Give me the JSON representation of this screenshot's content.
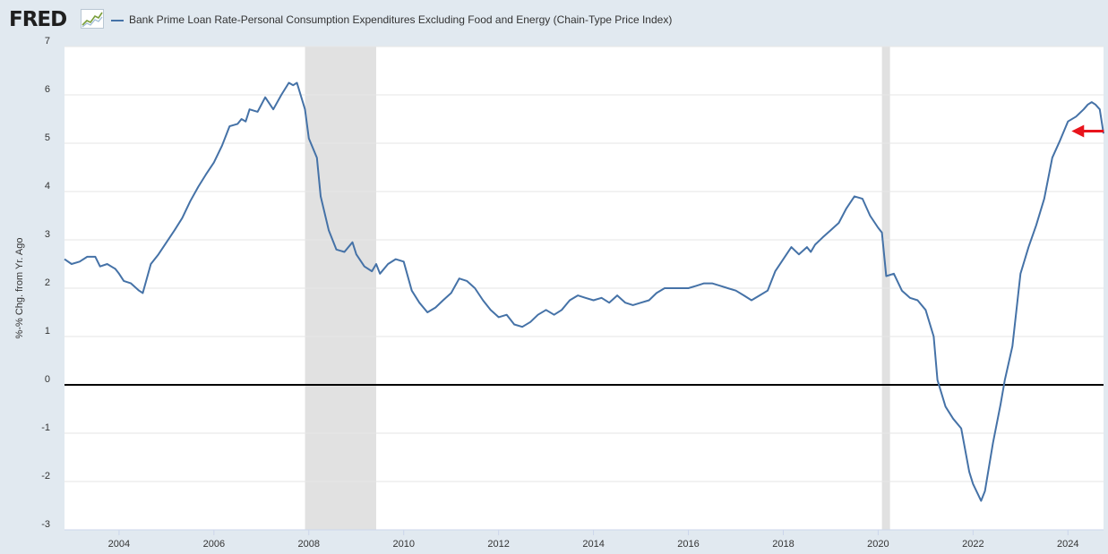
{
  "header": {
    "logo_text": "FRED",
    "logo_graph_icon": "trend-graph-icon"
  },
  "colors": {
    "series": "#4572a7",
    "recession": "#e1e1e1",
    "background": "#e1e9f0",
    "plot_background": "#ffffff",
    "zero_line": "#000000",
    "arrow": "#e8141c"
  },
  "chart_data": {
    "type": "line",
    "title": "",
    "xlabel": "",
    "ylabel": "%-% Chg. from Yr. Ago",
    "xlim": [
      2002.85,
      2024.75
    ],
    "ylim": [
      -3,
      7
    ],
    "y_ticks": [
      "7",
      "6",
      "5",
      "4",
      "3",
      "2",
      "1",
      "0",
      "-1",
      "-2",
      "-3"
    ],
    "x_ticks": [
      "2004",
      "2006",
      "2008",
      "2010",
      "2012",
      "2014",
      "2016",
      "2018",
      "2020",
      "2022",
      "2024"
    ],
    "grid": "horizontal",
    "legend_position": "top",
    "recessions": [
      [
        2007.92,
        2009.42
      ],
      [
        2020.08,
        2020.25
      ]
    ],
    "zero_line": 0,
    "annotation": {
      "type": "arrow",
      "points_to": [
        2024.0,
        5.25
      ]
    },
    "series": [
      {
        "name": "Bank Prime Loan Rate-Personal Consumption Expenditures Excluding Food and Energy (Chain-Type Price Index)",
        "points": [
          [
            2002.85,
            2.6
          ],
          [
            2003.0,
            2.5
          ],
          [
            2003.17,
            2.55
          ],
          [
            2003.33,
            2.65
          ],
          [
            2003.5,
            2.65
          ],
          [
            2003.6,
            2.45
          ],
          [
            2003.75,
            2.5
          ],
          [
            2003.92,
            2.4
          ],
          [
            2004.0,
            2.3
          ],
          [
            2004.1,
            2.15
          ],
          [
            2004.25,
            2.1
          ],
          [
            2004.42,
            1.95
          ],
          [
            2004.5,
            1.9
          ],
          [
            2004.67,
            2.5
          ],
          [
            2004.83,
            2.7
          ],
          [
            2005.0,
            2.95
          ],
          [
            2005.17,
            3.2
          ],
          [
            2005.33,
            3.45
          ],
          [
            2005.5,
            3.8
          ],
          [
            2005.67,
            4.1
          ],
          [
            2005.83,
            4.35
          ],
          [
            2006.0,
            4.6
          ],
          [
            2006.17,
            4.95
          ],
          [
            2006.33,
            5.35
          ],
          [
            2006.5,
            5.4
          ],
          [
            2006.58,
            5.5
          ],
          [
            2006.67,
            5.45
          ],
          [
            2006.75,
            5.7
          ],
          [
            2006.92,
            5.65
          ],
          [
            2007.08,
            5.95
          ],
          [
            2007.25,
            5.7
          ],
          [
            2007.42,
            6.0
          ],
          [
            2007.58,
            6.25
          ],
          [
            2007.67,
            6.2
          ],
          [
            2007.75,
            6.25
          ],
          [
            2007.92,
            5.7
          ],
          [
            2008.0,
            5.1
          ],
          [
            2008.17,
            4.7
          ],
          [
            2008.25,
            3.9
          ],
          [
            2008.42,
            3.2
          ],
          [
            2008.58,
            2.8
          ],
          [
            2008.75,
            2.75
          ],
          [
            2008.92,
            2.95
          ],
          [
            2009.0,
            2.7
          ],
          [
            2009.17,
            2.45
          ],
          [
            2009.33,
            2.35
          ],
          [
            2009.42,
            2.5
          ],
          [
            2009.5,
            2.3
          ],
          [
            2009.67,
            2.5
          ],
          [
            2009.83,
            2.6
          ],
          [
            2010.0,
            2.55
          ],
          [
            2010.17,
            1.95
          ],
          [
            2010.33,
            1.7
          ],
          [
            2010.5,
            1.5
          ],
          [
            2010.67,
            1.6
          ],
          [
            2010.83,
            1.75
          ],
          [
            2011.0,
            1.9
          ],
          [
            2011.17,
            2.2
          ],
          [
            2011.33,
            2.15
          ],
          [
            2011.5,
            2.0
          ],
          [
            2011.67,
            1.75
          ],
          [
            2011.83,
            1.55
          ],
          [
            2012.0,
            1.4
          ],
          [
            2012.17,
            1.45
          ],
          [
            2012.33,
            1.25
          ],
          [
            2012.5,
            1.2
          ],
          [
            2012.67,
            1.3
          ],
          [
            2012.83,
            1.45
          ],
          [
            2013.0,
            1.55
          ],
          [
            2013.17,
            1.45
          ],
          [
            2013.33,
            1.55
          ],
          [
            2013.5,
            1.75
          ],
          [
            2013.67,
            1.85
          ],
          [
            2013.83,
            1.8
          ],
          [
            2014.0,
            1.75
          ],
          [
            2014.17,
            1.8
          ],
          [
            2014.33,
            1.7
          ],
          [
            2014.5,
            1.85
          ],
          [
            2014.67,
            1.7
          ],
          [
            2014.83,
            1.65
          ],
          [
            2015.0,
            1.7
          ],
          [
            2015.17,
            1.75
          ],
          [
            2015.33,
            1.9
          ],
          [
            2015.5,
            2.0
          ],
          [
            2015.67,
            2.0
          ],
          [
            2015.83,
            2.0
          ],
          [
            2016.0,
            2.0
          ],
          [
            2016.17,
            2.05
          ],
          [
            2016.33,
            2.1
          ],
          [
            2016.5,
            2.1
          ],
          [
            2016.67,
            2.05
          ],
          [
            2016.83,
            2.0
          ],
          [
            2017.0,
            1.95
          ],
          [
            2017.17,
            1.85
          ],
          [
            2017.33,
            1.75
          ],
          [
            2017.5,
            1.85
          ],
          [
            2017.67,
            1.95
          ],
          [
            2017.83,
            2.35
          ],
          [
            2018.0,
            2.6
          ],
          [
            2018.17,
            2.85
          ],
          [
            2018.33,
            2.7
          ],
          [
            2018.5,
            2.85
          ],
          [
            2018.58,
            2.75
          ],
          [
            2018.67,
            2.9
          ],
          [
            2018.83,
            3.05
          ],
          [
            2019.0,
            3.2
          ],
          [
            2019.17,
            3.35
          ],
          [
            2019.33,
            3.65
          ],
          [
            2019.5,
            3.9
          ],
          [
            2019.67,
            3.85
          ],
          [
            2019.83,
            3.5
          ],
          [
            2020.0,
            3.25
          ],
          [
            2020.08,
            3.15
          ],
          [
            2020.17,
            2.25
          ],
          [
            2020.33,
            2.3
          ],
          [
            2020.5,
            1.95
          ],
          [
            2020.67,
            1.8
          ],
          [
            2020.83,
            1.75
          ],
          [
            2021.0,
            1.55
          ],
          [
            2021.17,
            1.0
          ],
          [
            2021.25,
            0.1
          ],
          [
            2021.42,
            -0.45
          ],
          [
            2021.58,
            -0.7
          ],
          [
            2021.75,
            -0.9
          ],
          [
            2021.92,
            -1.8
          ],
          [
            2022.0,
            -2.05
          ],
          [
            2022.17,
            -2.4
          ],
          [
            2022.25,
            -2.2
          ],
          [
            2022.42,
            -1.2
          ],
          [
            2022.58,
            -0.4
          ],
          [
            2022.67,
            0.1
          ],
          [
            2022.83,
            0.8
          ],
          [
            2023.0,
            2.3
          ],
          [
            2023.17,
            2.85
          ],
          [
            2023.33,
            3.3
          ],
          [
            2023.5,
            3.85
          ],
          [
            2023.67,
            4.7
          ],
          [
            2023.83,
            5.05
          ],
          [
            2024.0,
            5.45
          ],
          [
            2024.17,
            5.55
          ],
          [
            2024.33,
            5.7
          ],
          [
            2024.42,
            5.8
          ],
          [
            2024.5,
            5.85
          ],
          [
            2024.58,
            5.8
          ],
          [
            2024.67,
            5.7
          ],
          [
            2024.75,
            5.2
          ]
        ]
      }
    ]
  }
}
